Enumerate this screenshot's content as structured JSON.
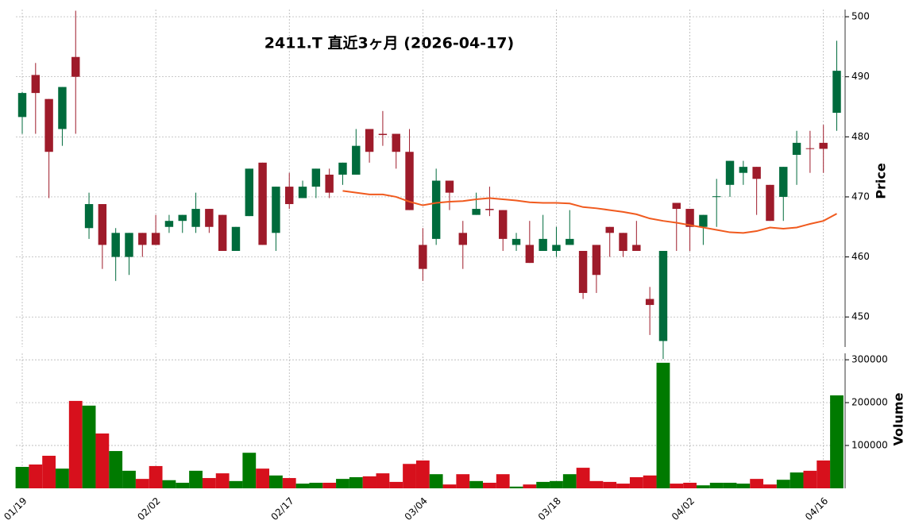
{
  "chart_data": {
    "type": "candlestick",
    "title": "2411.T  直近3ヶ月  (2026-04-17)",
    "ylabel": "Price",
    "y2label": "Volume",
    "categories": [
      "01/19",
      null,
      null,
      null,
      null,
      null,
      null,
      null,
      null,
      null,
      "02/02",
      null,
      null,
      null,
      null,
      null,
      null,
      null,
      null,
      null,
      "02/17",
      null,
      null,
      null,
      null,
      null,
      null,
      null,
      null,
      null,
      "03/04",
      null,
      null,
      null,
      null,
      null,
      null,
      null,
      null,
      null,
      "03/18",
      null,
      null,
      null,
      null,
      null,
      null,
      null,
      null,
      null,
      "04/02",
      null,
      null,
      null,
      null,
      null,
      null,
      null,
      null,
      null,
      "04/16",
      null
    ],
    "open": [
      483.3,
      490.3,
      486.3,
      481.3,
      493.3,
      464.8,
      468.8,
      460,
      460,
      464,
      464,
      465,
      466,
      465,
      468,
      467,
      461,
      466.8,
      475.7,
      464,
      471.7,
      469.8,
      471.7,
      473.7,
      473.7,
      473.7,
      481.3,
      480.5,
      480.5,
      477.5,
      462,
      463,
      472.7,
      464,
      467,
      468,
      467.8,
      462,
      462,
      461,
      461,
      462,
      461,
      462,
      465,
      464,
      462,
      453,
      446,
      469,
      468,
      465,
      470,
      472,
      474,
      475,
      472,
      470,
      477,
      478.1,
      479,
      484
    ],
    "close": [
      487.3,
      487.3,
      477.5,
      488.3,
      490,
      468.8,
      462,
      464,
      464,
      462,
      462,
      466,
      467,
      468,
      465,
      461,
      465,
      474.7,
      462,
      471.7,
      468.8,
      471.7,
      474.7,
      470.7,
      475.7,
      478.5,
      477.5,
      480.3,
      477.5,
      467.8,
      458,
      472.7,
      470.7,
      462,
      468,
      467.8,
      463,
      463,
      459,
      463,
      462,
      463,
      454,
      457,
      464,
      461,
      461,
      452,
      461,
      468,
      465,
      467,
      470.1,
      476,
      475,
      473,
      466,
      475,
      479,
      478,
      478,
      491
    ],
    "high": [
      487.5,
      492.3,
      486.3,
      488.3,
      501,
      470.7,
      468.8,
      464.8,
      464,
      464,
      467,
      467,
      467,
      470.7,
      468,
      467,
      465,
      474.7,
      475.7,
      471.7,
      474,
      472.7,
      474.7,
      474.7,
      475.7,
      481.3,
      481.3,
      484.3,
      480.5,
      481.3,
      464.8,
      474.7,
      472.7,
      466,
      470.7,
      471.7,
      467.8,
      464,
      466,
      467,
      465,
      467.8,
      461,
      462,
      465,
      464,
      466,
      455,
      461,
      469,
      468,
      467,
      473,
      476,
      476,
      475,
      472,
      475,
      481,
      481,
      482,
      496
    ],
    "low": [
      480.5,
      480.5,
      469.8,
      478.5,
      480.5,
      463,
      458,
      456,
      457,
      460,
      462,
      464,
      464,
      464,
      464,
      461,
      461,
      466.8,
      462,
      461,
      468,
      469.8,
      469.8,
      469.8,
      472,
      473.7,
      475.7,
      478.5,
      474.7,
      467.8,
      456,
      462,
      467.8,
      458,
      467,
      466.8,
      461,
      461,
      459,
      461,
      460,
      462,
      453,
      454,
      460,
      460,
      461,
      447,
      443,
      461,
      461,
      462,
      465,
      470,
      472,
      467,
      466,
      466,
      472,
      474,
      474,
      481
    ],
    "volume": [
      50000,
      55600,
      76000,
      46000,
      204000,
      193000,
      128000,
      87000,
      41000,
      22000,
      52000,
      19000,
      13000,
      41000,
      24000,
      35000,
      17000,
      83000,
      46000,
      30000,
      24000,
      11000,
      13000,
      13000,
      22000,
      26000,
      28000,
      35000,
      15000,
      57000,
      65000,
      33000,
      9000,
      33000,
      17000,
      13000,
      33000,
      4000,
      9000,
      15000,
      17000,
      33000,
      48000,
      17000,
      15000,
      11000,
      26000,
      30000,
      293000,
      11000,
      13000,
      7000,
      13000,
      13000,
      11000,
      22000,
      9000,
      20000,
      37000,
      41000,
      65000,
      217000
    ],
    "ma": {
      "color": "#f05a1e",
      "values": [
        null,
        null,
        null,
        null,
        null,
        null,
        null,
        null,
        null,
        null,
        null,
        null,
        null,
        null,
        null,
        null,
        null,
        null,
        null,
        null,
        null,
        null,
        null,
        null,
        471,
        470.7,
        470.4,
        470.4,
        470,
        469.2,
        468.6,
        469,
        469.2,
        469.3,
        469.6,
        469.8,
        469.6,
        469.4,
        469.1,
        469,
        469,
        468.9,
        468.3,
        468.1,
        467.8,
        467.5,
        467.1,
        466.4,
        466,
        465.7,
        465.3,
        464.9,
        464.5,
        464.1,
        464,
        464.3,
        464.9,
        464.7,
        464.9,
        465.5,
        466,
        467.2
      ]
    },
    "up_color": "#006b3c",
    "down_color": "#9e1b2a",
    "volume_up_color": "#007a00",
    "volume_down_color": "#d7101c",
    "ylim": [
      445,
      501.2
    ],
    "yticks": [
      450,
      460,
      470,
      480,
      490,
      500
    ],
    "y2lim": [
      0,
      315000
    ],
    "y2ticks": [
      100000,
      200000,
      300000
    ],
    "grid": true
  }
}
